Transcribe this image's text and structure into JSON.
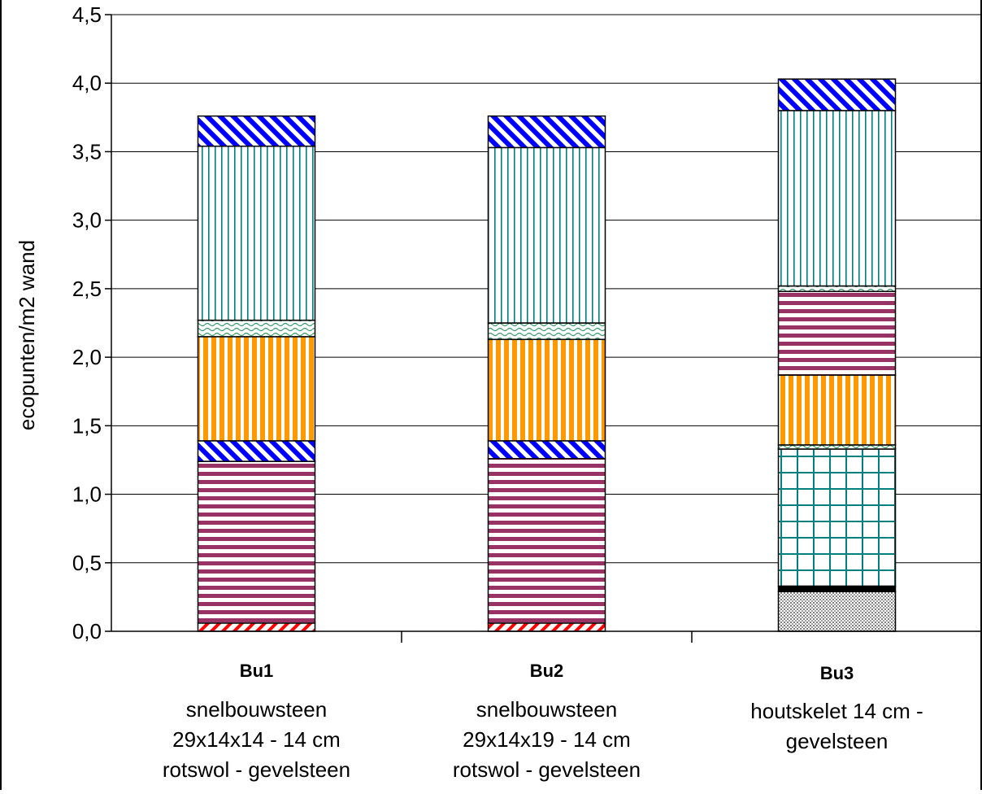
{
  "chart_data": {
    "type": "bar",
    "stacked": true,
    "title": "",
    "xlabel": "",
    "ylabel": "ecopunten/m2 wand",
    "ylim": [
      0,
      4.5
    ],
    "ytick_step": 0.5,
    "ytick_labels": [
      "0,0",
      "0,5",
      "1,0",
      "1,5",
      "2,0",
      "2,5",
      "3,0",
      "3,5",
      "4,0",
      "4,5"
    ],
    "grid": true,
    "legend": "none",
    "categories": [
      {
        "code": "Bu1",
        "lines": [
          "snelbouwsteen",
          "29x14x14 - 14 cm",
          "rotswol - gevelsteen"
        ]
      },
      {
        "code": "Bu2",
        "lines": [
          "snelbouwsteen",
          "29x14x19 - 14 cm",
          "rotswol - gevelsteen"
        ]
      },
      {
        "code": "Bu3",
        "lines": [
          "houtskelet 14 cm -",
          "gevelsteen"
        ]
      }
    ],
    "segments": [
      [
        {
          "value": 0.06,
          "pattern": "red-diag",
          "color": "#ff0000"
        },
        {
          "value": 1.18,
          "pattern": "purple-horiz",
          "color": "#993366"
        },
        {
          "value": 0.15,
          "pattern": "blue-diag",
          "color": "#0000ff"
        },
        {
          "value": 0.76,
          "pattern": "orange-vert",
          "color": "#ff9900"
        },
        {
          "value": 0.12,
          "pattern": "green-wave",
          "color": "#339966"
        },
        {
          "value": 1.27,
          "pattern": "teal-vert",
          "color": "#008080"
        },
        {
          "value": 0.22,
          "pattern": "blue-diag",
          "color": "#0000ff"
        }
      ],
      [
        {
          "value": 0.06,
          "pattern": "red-diag",
          "color": "#ff0000"
        },
        {
          "value": 1.2,
          "pattern": "purple-horiz",
          "color": "#993366"
        },
        {
          "value": 0.13,
          "pattern": "blue-diag",
          "color": "#0000ff"
        },
        {
          "value": 0.74,
          "pattern": "orange-vert",
          "color": "#ff9900"
        },
        {
          "value": 0.12,
          "pattern": "green-wave",
          "color": "#339966"
        },
        {
          "value": 1.28,
          "pattern": "teal-vert",
          "color": "#008080"
        },
        {
          "value": 0.23,
          "pattern": "blue-diag",
          "color": "#0000ff"
        }
      ],
      [
        {
          "value": 0.29,
          "pattern": "gray-dots",
          "color": "#808080"
        },
        {
          "value": 0.04,
          "pattern": "black-solid",
          "color": "#000000"
        },
        {
          "value": 1.0,
          "pattern": "teal-grid",
          "color": "#008080"
        },
        {
          "value": 0.03,
          "pattern": "green-wave",
          "color": "#339966"
        },
        {
          "value": 0.51,
          "pattern": "orange-vert",
          "color": "#ff9900"
        },
        {
          "value": 0.61,
          "pattern": "purple-horiz",
          "color": "#993366"
        },
        {
          "value": 0.04,
          "pattern": "green-wave",
          "color": "#339966"
        },
        {
          "value": 1.28,
          "pattern": "teal-vert",
          "color": "#008080"
        },
        {
          "value": 0.23,
          "pattern": "blue-diag",
          "color": "#0000ff"
        }
      ]
    ]
  }
}
